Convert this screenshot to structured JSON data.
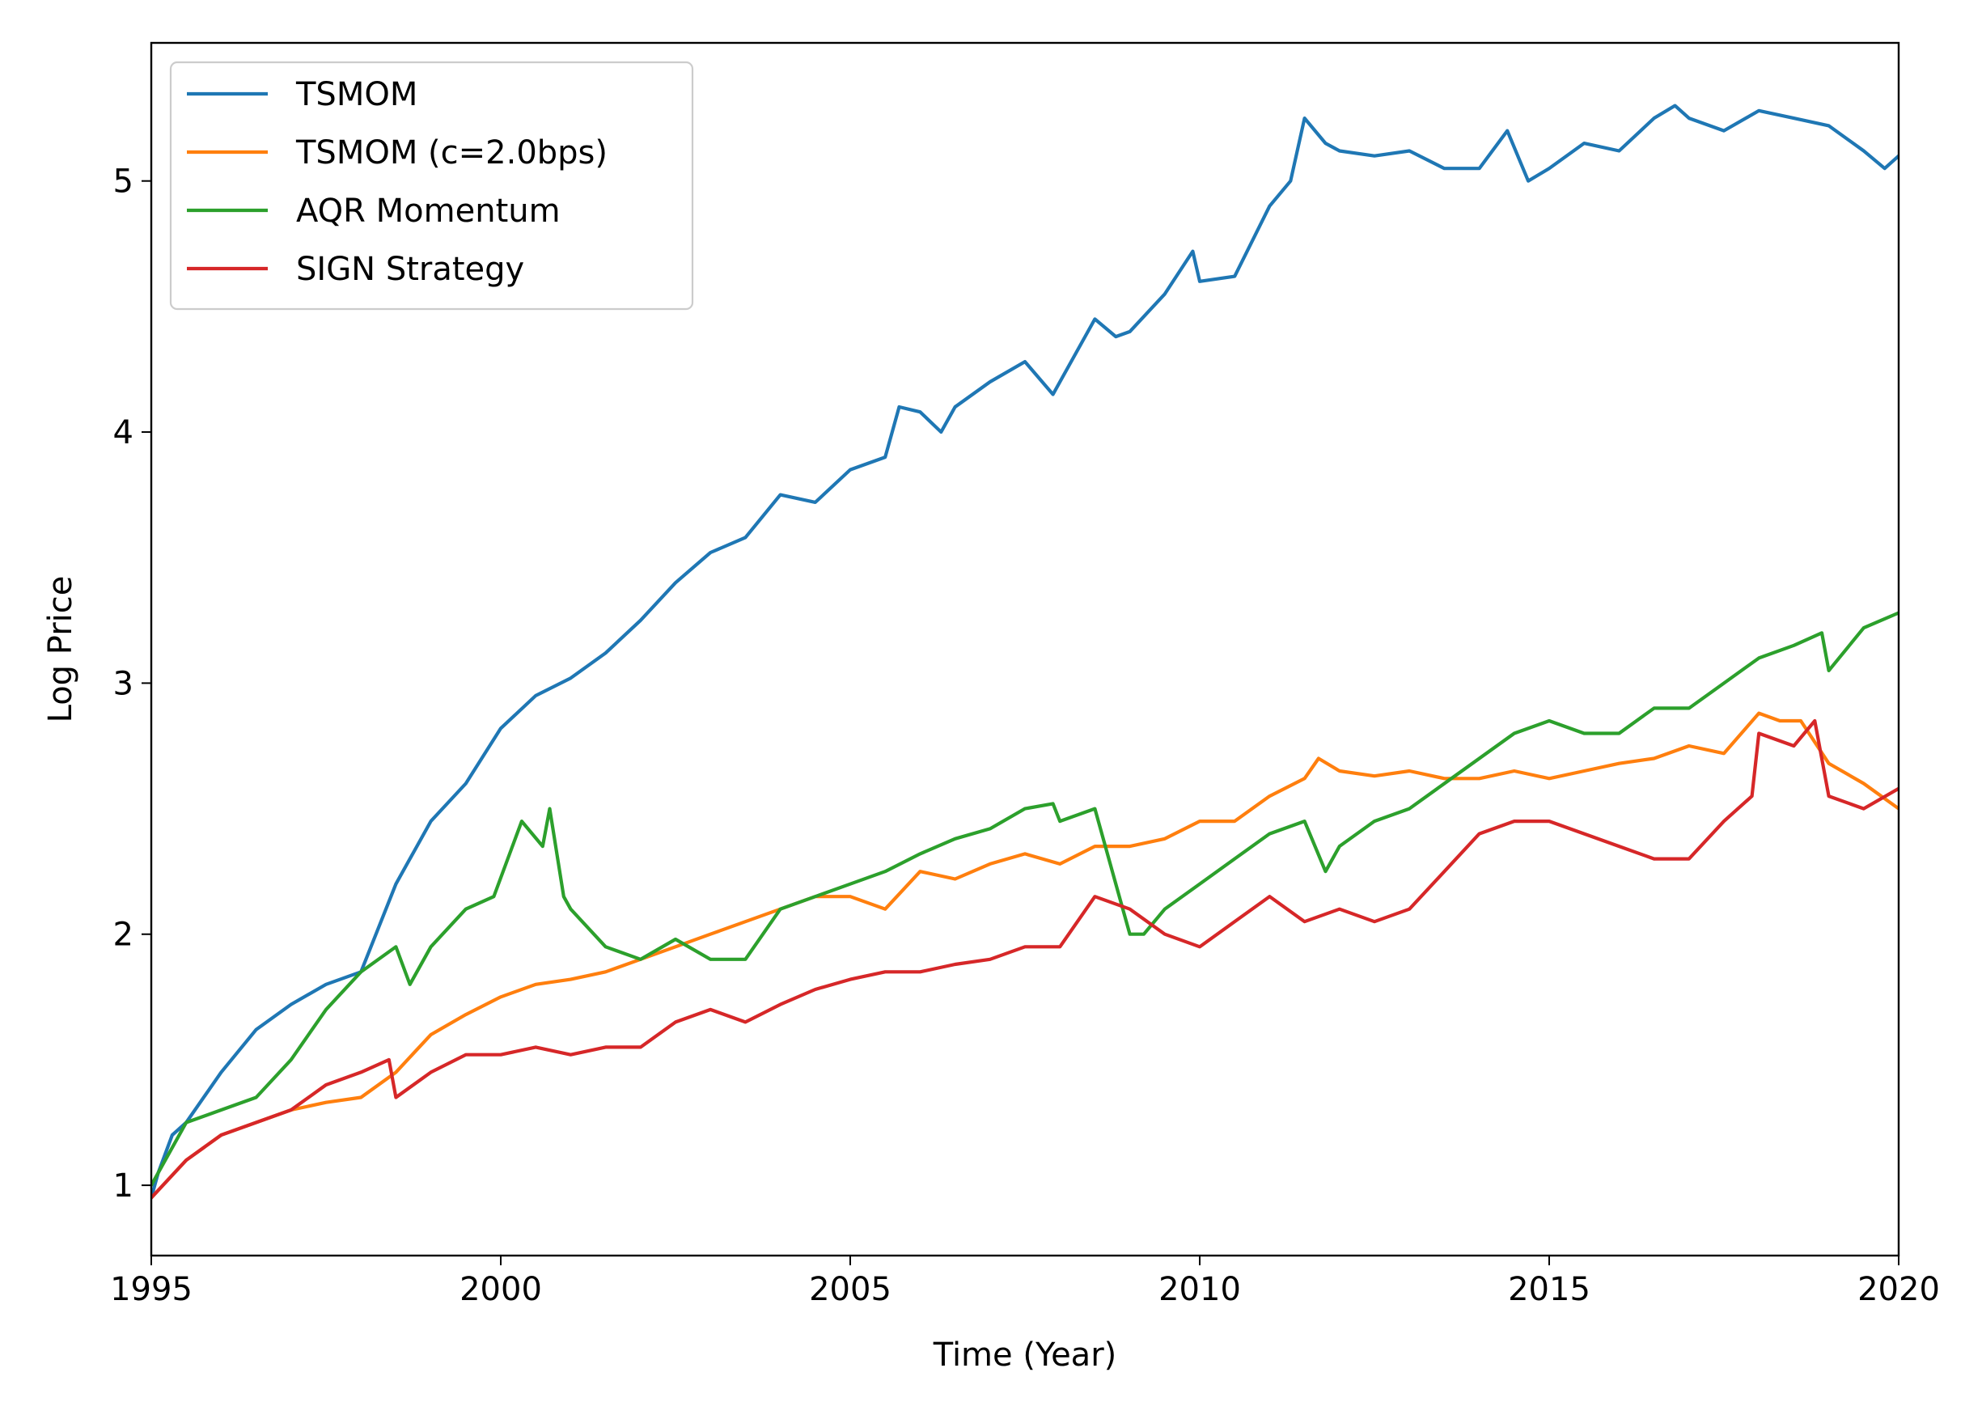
{
  "chart_data": {
    "type": "line",
    "title": "",
    "xlabel": "Time (Year)",
    "ylabel": "Log Price",
    "xlim": [
      1995,
      2020
    ],
    "ylim": [
      0.72,
      5.55
    ],
    "x_ticks": [
      1995,
      2000,
      2005,
      2010,
      2015,
      2020
    ],
    "y_ticks": [
      1,
      2,
      3,
      4,
      5
    ],
    "grid": false,
    "legend_position": "top-left",
    "series": [
      {
        "name": "TSMOM",
        "color": "#1f77b4",
        "x": [
          1995.0,
          1995.1,
          1995.3,
          1995.5,
          1996.0,
          1996.5,
          1997.0,
          1997.5,
          1998.0,
          1998.5,
          1999.0,
          1999.5,
          2000.0,
          2000.5,
          2001.0,
          2001.5,
          2002.0,
          2002.5,
          2003.0,
          2003.5,
          2004.0,
          2004.5,
          2005.0,
          2005.5,
          2005.7,
          2006.0,
          2006.3,
          2006.5,
          2007.0,
          2007.5,
          2007.9,
          2008.0,
          2008.5,
          2008.8,
          2009.0,
          2009.5,
          2009.9,
          2010.0,
          2010.5,
          2011.0,
          2011.3,
          2011.5,
          2011.8,
          2012.0,
          2012.5,
          2013.0,
          2013.5,
          2014.0,
          2014.4,
          2014.7,
          2015.0,
          2015.5,
          2016.0,
          2016.5,
          2016.8,
          2017.0,
          2017.5,
          2018.0,
          2018.5,
          2019.0,
          2019.5,
          2019.8,
          2020.0
        ],
        "values": [
          0.95,
          1.05,
          1.2,
          1.25,
          1.45,
          1.62,
          1.72,
          1.8,
          1.85,
          2.2,
          2.45,
          2.6,
          2.82,
          2.95,
          3.02,
          3.12,
          3.25,
          3.4,
          3.52,
          3.58,
          3.75,
          3.72,
          3.85,
          3.9,
          4.1,
          4.08,
          4.0,
          4.1,
          4.2,
          4.28,
          4.15,
          4.2,
          4.45,
          4.38,
          4.4,
          4.55,
          4.72,
          4.6,
          4.62,
          4.9,
          5.0,
          5.25,
          5.15,
          5.12,
          5.1,
          5.12,
          5.05,
          5.05,
          5.2,
          5.0,
          5.05,
          5.15,
          5.12,
          5.25,
          5.3,
          5.25,
          5.2,
          5.28,
          5.25,
          5.22,
          5.12,
          5.05,
          5.1
        ]
      },
      {
        "name": "TSMOM (c=2.0bps)",
        "color": "#ff7f0e",
        "x": [
          1995.0,
          1995.5,
          1996.0,
          1996.5,
          1997.0,
          1997.5,
          1998.0,
          1998.5,
          1999.0,
          1999.5,
          2000.0,
          2000.5,
          2001.0,
          2001.5,
          2002.0,
          2002.5,
          2003.0,
          2003.5,
          2004.0,
          2004.5,
          2005.0,
          2005.5,
          2006.0,
          2006.5,
          2007.0,
          2007.5,
          2008.0,
          2008.5,
          2009.0,
          2009.5,
          2010.0,
          2010.5,
          2011.0,
          2011.5,
          2011.7,
          2012.0,
          2012.5,
          2013.0,
          2013.5,
          2014.0,
          2014.5,
          2015.0,
          2015.5,
          2016.0,
          2016.5,
          2017.0,
          2017.5,
          2018.0,
          2018.3,
          2018.6,
          2019.0,
          2019.5,
          2020.0
        ],
        "values": [
          0.95,
          1.1,
          1.2,
          1.25,
          1.3,
          1.33,
          1.35,
          1.45,
          1.6,
          1.68,
          1.75,
          1.8,
          1.82,
          1.85,
          1.9,
          1.95,
          2.0,
          2.05,
          2.1,
          2.15,
          2.15,
          2.1,
          2.25,
          2.22,
          2.28,
          2.32,
          2.28,
          2.35,
          2.35,
          2.38,
          2.45,
          2.45,
          2.55,
          2.62,
          2.7,
          2.65,
          2.63,
          2.65,
          2.62,
          2.62,
          2.65,
          2.62,
          2.65,
          2.68,
          2.7,
          2.75,
          2.72,
          2.88,
          2.85,
          2.85,
          2.68,
          2.6,
          2.5
        ]
      },
      {
        "name": "AQR Momentum",
        "color": "#2ca02c",
        "x": [
          1995.0,
          1995.5,
          1996.0,
          1996.5,
          1997.0,
          1997.5,
          1998.0,
          1998.5,
          1998.7,
          1999.0,
          1999.5,
          1999.9,
          2000.3,
          2000.6,
          2000.7,
          2000.9,
          2001.0,
          2001.5,
          2002.0,
          2002.5,
          2003.0,
          2003.5,
          2004.0,
          2004.5,
          2005.0,
          2005.5,
          2006.0,
          2006.5,
          2007.0,
          2007.5,
          2007.9,
          2008.0,
          2008.5,
          2008.8,
          2009.0,
          2009.2,
          2009.5,
          2010.0,
          2010.5,
          2011.0,
          2011.5,
          2011.8,
          2012.0,
          2012.5,
          2013.0,
          2013.5,
          2014.0,
          2014.5,
          2015.0,
          2015.5,
          2016.0,
          2016.5,
          2017.0,
          2017.5,
          2018.0,
          2018.5,
          2018.9,
          2019.0,
          2019.5,
          2020.0
        ],
        "values": [
          1.0,
          1.25,
          1.3,
          1.35,
          1.5,
          1.7,
          1.85,
          1.95,
          1.8,
          1.95,
          2.1,
          2.15,
          2.45,
          2.35,
          2.5,
          2.15,
          2.1,
          1.95,
          1.9,
          1.98,
          1.9,
          1.9,
          2.1,
          2.15,
          2.2,
          2.25,
          2.32,
          2.38,
          2.42,
          2.5,
          2.52,
          2.45,
          2.5,
          2.2,
          2.0,
          2.0,
          2.1,
          2.2,
          2.3,
          2.4,
          2.45,
          2.25,
          2.35,
          2.45,
          2.5,
          2.6,
          2.7,
          2.8,
          2.85,
          2.8,
          2.8,
          2.9,
          2.9,
          3.0,
          3.1,
          3.15,
          3.2,
          3.05,
          3.22,
          3.28
        ]
      },
      {
        "name": "SIGN Strategy",
        "color": "#d62728",
        "x": [
          1995.0,
          1995.5,
          1996.0,
          1996.5,
          1997.0,
          1997.5,
          1998.0,
          1998.4,
          1998.5,
          1999.0,
          1999.5,
          2000.0,
          2000.5,
          2001.0,
          2001.5,
          2002.0,
          2002.5,
          2003.0,
          2003.5,
          2004.0,
          2004.5,
          2005.0,
          2005.5,
          2006.0,
          2006.5,
          2007.0,
          2007.5,
          2008.0,
          2008.5,
          2009.0,
          2009.5,
          2010.0,
          2010.5,
          2011.0,
          2011.5,
          2012.0,
          2012.5,
          2013.0,
          2013.5,
          2014.0,
          2014.5,
          2015.0,
          2015.5,
          2016.0,
          2016.5,
          2017.0,
          2017.5,
          2017.9,
          2018.0,
          2018.5,
          2018.8,
          2019.0,
          2019.5,
          2020.0
        ],
        "values": [
          0.95,
          1.1,
          1.2,
          1.25,
          1.3,
          1.4,
          1.45,
          1.5,
          1.35,
          1.45,
          1.52,
          1.52,
          1.55,
          1.52,
          1.55,
          1.55,
          1.65,
          1.7,
          1.65,
          1.72,
          1.78,
          1.82,
          1.85,
          1.85,
          1.88,
          1.9,
          1.95,
          1.95,
          2.15,
          2.1,
          2.0,
          1.95,
          2.05,
          2.15,
          2.05,
          2.1,
          2.05,
          2.1,
          2.25,
          2.4,
          2.45,
          2.45,
          2.4,
          2.35,
          2.3,
          2.3,
          2.45,
          2.55,
          2.8,
          2.75,
          2.85,
          2.55,
          2.5,
          2.58
        ]
      }
    ]
  }
}
